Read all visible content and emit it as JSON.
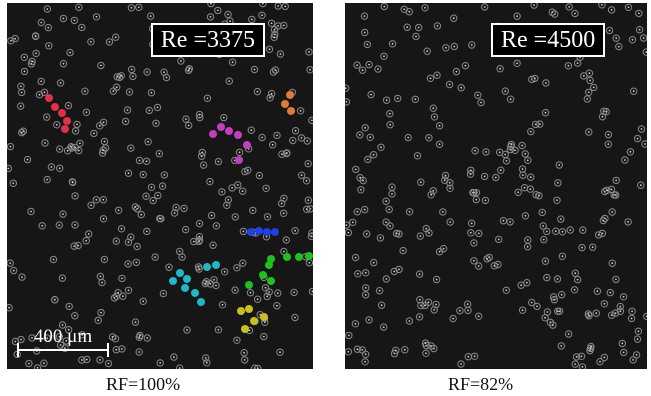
{
  "panels": [
    {
      "re_label": "Re =3375",
      "caption": "RF=100%",
      "scale_label": "400 μm"
    },
    {
      "re_label": "Re =4500",
      "caption": "RF=82%"
    }
  ],
  "colors": {
    "background": "#161616",
    "particle": "#8a8a8a",
    "cluster_red": "#e0304a",
    "cluster_orange": "#e07a3a",
    "cluster_magenta": "#c040c0",
    "cluster_blue": "#2040e0",
    "cluster_green": "#20c020",
    "cluster_cyan": "#20b8c8",
    "cluster_yellow": "#c8c020"
  }
}
